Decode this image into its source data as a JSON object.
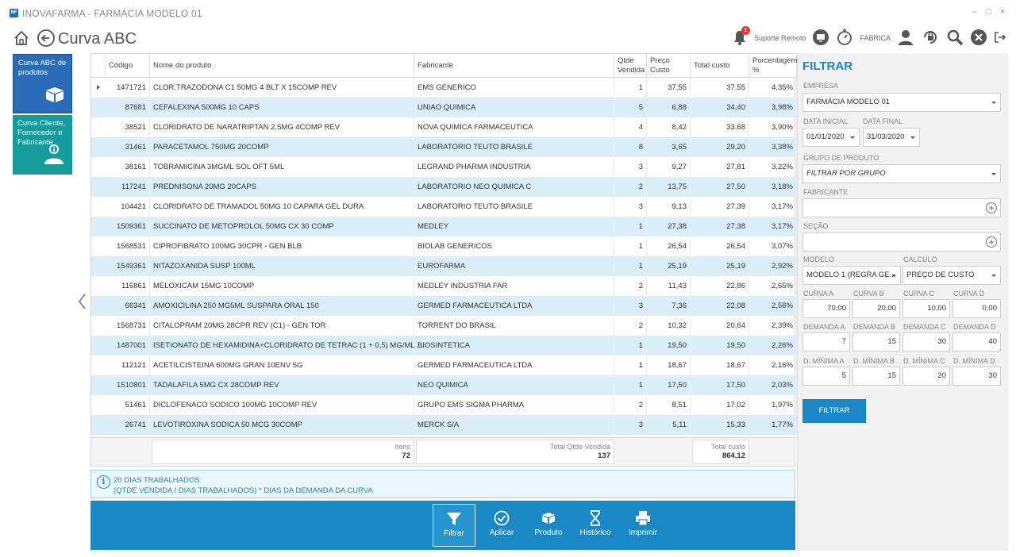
{
  "window": {
    "title": "INOVAFARMA - FARMÁCIA MODELO 01",
    "logo": "NF",
    "controls": [
      "‒",
      "□",
      "×"
    ]
  },
  "header": {
    "title": "Curva ABC",
    "support_label": "Suporte Remoto",
    "company_label": "FABRICA",
    "notification_count": "1"
  },
  "tiles": [
    {
      "label": "Curva ABC de produtos",
      "color": "#2b6cb7"
    },
    {
      "label": "Curva Cliente, Fornecedor e Fabricante",
      "color": "#169b9c"
    }
  ],
  "grid": {
    "columns": [
      "Código",
      "Nome do produto",
      "Fabricante",
      "Qtde Vendida",
      "Preço Custo",
      "Total custo",
      "Porcentagem %"
    ],
    "rows": [
      [
        "1471721",
        "CLOR.TRAZODONA C1 50MG 4 BLT X 15COMP REV",
        "EMS GENERICO",
        "1",
        "37,55",
        "37,55",
        "4,35%"
      ],
      [
        "87681",
        "CEFALEXINA 500MG 10 CAPS",
        "UNIAO QUIMICA",
        "5",
        "6,88",
        "34,40",
        "3,98%"
      ],
      [
        "38521",
        "CLORIDRATO DE NARATRIPTAN 2,5MG 4COMP REV",
        "NOVA QUIMICA FARMACEUTICA",
        "4",
        "8,42",
        "33,68",
        "3,90%"
      ],
      [
        "31461",
        "PARACETAMOL 750MG 20COMP",
        "LABORATORIO TEUTO BRASILE",
        "8",
        "3,65",
        "29,20",
        "3,38%"
      ],
      [
        "38161",
        "TOBRAMICINA 3MGML SOL OFT 5ML",
        "LEGRAND PHARMA INDUSTRIA",
        "3",
        "9,27",
        "27,81",
        "3,22%"
      ],
      [
        "117241",
        "PREDNISONA 20MG 20CAPS",
        "LABORATORIO NEO QUIMICA C",
        "2",
        "13,75",
        "27,50",
        "3,18%"
      ],
      [
        "104421",
        "CLORIDRATO DE TRAMADOL 50MG 10 CAPARA GEL DURA",
        "LABORATORIO TEUTO BRASILE",
        "3",
        "9,13",
        "27,39",
        "3,17%"
      ],
      [
        "1509361",
        "SUCCINATO DE METOPROLOL 50MG CX 30 COMP",
        "MEDLEY",
        "1",
        "27,38",
        "27,38",
        "3,17%"
      ],
      [
        "1568531",
        "CIPROFIBRATO 100MG 30CPR - GEN BLB",
        "BIOLAB GENERICOS",
        "1",
        "26,54",
        "26,54",
        "3,07%"
      ],
      [
        "1549361",
        "NITAZOXANIDA SUSP 100ML",
        "EUROFARMA",
        "1",
        "25,19",
        "25,19",
        "2,92%"
      ],
      [
        "116861",
        "MELOXICAM 15MG 10COMP",
        "MEDLEY INDUSTRIA FAR",
        "2",
        "11,43",
        "22,86",
        "2,65%"
      ],
      [
        "66341",
        "AMOXICILINA 250 MG5ML SUSPARA ORAL 150",
        "GERMED FARMACEUTICA LTDA",
        "3",
        "7,36",
        "22,08",
        "2,56%"
      ],
      [
        "1568731",
        "CITALOPRAM 20MG 28CPR REV (C1) - GEN TOR",
        "TORRENT DO BRASIL",
        "2",
        "10,32",
        "20,64",
        "2,39%"
      ],
      [
        "1487001",
        "ISETIONATO DE HEXAMIDINA+CLORIDRATO DE TETRAC (1 + 0,5) MG/ML ...",
        "BIOSINTETICA",
        "1",
        "19,50",
        "19,50",
        "2,26%"
      ],
      [
        "112121",
        "ACETILCISTEINA 600MG GRAN 10ENV 5G",
        "GERMED FARMACEUTICA LTDA",
        "1",
        "18,67",
        "18,67",
        "2,16%"
      ],
      [
        "1510801",
        "TADALAFILA 5MG CX 28COMP REV",
        "NEO QUIMICA",
        "1",
        "17,50",
        "17,50",
        "2,03%"
      ],
      [
        "51461",
        "DICLOFENACO SODICO 100MG 10COMP REV",
        "GRUPO EMS SIGMA PHARMA",
        "2",
        "8,51",
        "17,02",
        "1,97%"
      ],
      [
        "26741",
        "LEVOTIROXINA SODICA 50 MCG 30COMP",
        "MERCK S/A",
        "3",
        "5,11",
        "15,33",
        "1,77%"
      ]
    ],
    "footer": {
      "items_label": "Itens",
      "items_value": "72",
      "qty_label": "Total Qtde Vendida",
      "qty_value": "137",
      "cost_label": "Total custo",
      "cost_value": "864,12"
    }
  },
  "info": {
    "line1": "20 DIAS TRABALHADOS",
    "line2": "(QTDE VENDIDA / DIAS TRABALHADOS) * DIAS DA DEMANDA DA CURVA"
  },
  "toolbar": {
    "buttons": [
      "Filtrar",
      "Aplicar",
      "Produto",
      "Histórico",
      "Imprimir"
    ]
  },
  "filter": {
    "title": "FILTRAR",
    "empresa_label": "EMPRESA",
    "empresa_value": "FARMÁCIA MODELO 01",
    "data_inicial_label": "DATA INICIAL",
    "data_inicial_value": "01/01/2020",
    "data_final_label": "DATA FINAL",
    "data_final_value": "31/03/2020",
    "grupo_label": "GRUPO DE PRODUTO",
    "grupo_value": "FILTRAR POR GRUPO",
    "fabricante_label": "FABRICANTE",
    "secao_label": "SEÇÃO",
    "modelo_label": "MODELO",
    "modelo_value": "MODELO 1 (REGRA GE...",
    "calculo_label": "CALCULO",
    "calculo_value": "PREÇO DE CUSTO",
    "curva_labels": [
      "CURVA A",
      "CURVA B",
      "CURVA C",
      "CURVA D"
    ],
    "curva_values": [
      "70,00",
      "20,00",
      "10,00",
      "0,00"
    ],
    "demanda_labels": [
      "DEMANDA A",
      "DEMANDA B",
      "DEMANDA C",
      "DEMANDA D"
    ],
    "demanda_values": [
      "7",
      "15",
      "30",
      "40"
    ],
    "dmin_labels": [
      "D. MÍNIMA A",
      "D. MÍNIMA B",
      "D. MÍNIMA C",
      "D. MÍNIMA D"
    ],
    "dmin_values": [
      "5",
      "15",
      "20",
      "30"
    ],
    "button_label": "FILTRAR"
  }
}
